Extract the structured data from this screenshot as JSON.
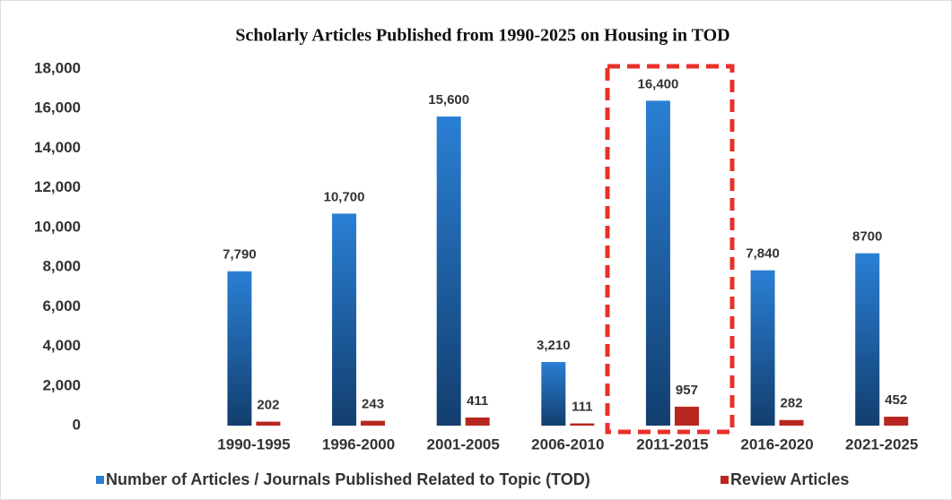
{
  "chart_data": {
    "type": "bar",
    "title": "Scholarly Articles Published from 1990-2025 on Housing in TOD",
    "categories": [
      null,
      "1990-1995",
      "1996-2000",
      "2001-2005",
      "2006-2010",
      "2011-2015",
      "2016-2020",
      "2021-2025"
    ],
    "series": [
      {
        "name": "Number of Articles / Journals Published Related to Topic (TOD)",
        "color": "#2a7fd4",
        "values": [
          null,
          7790,
          10700,
          15600,
          3210,
          16400,
          7840,
          8700
        ],
        "value_labels": [
          null,
          "7,790",
          "10,700",
          "15,600",
          "3,210",
          "16,400",
          "7,840",
          "8700"
        ]
      },
      {
        "name": "Review  Articles",
        "color": "#b8271f",
        "values": [
          null,
          202,
          243,
          411,
          111,
          957,
          282,
          452
        ]
      }
    ],
    "ylim": [
      0,
      18000
    ],
    "yticks": [
      0,
      {
        "value": 2000,
        "label": "2,000"
      },
      {
        "value": 4000,
        "label": "4,000"
      },
      {
        "value": 6000,
        "label": "6,000"
      },
      {
        "value": 8000,
        "label": "8,000"
      },
      {
        "value": 10000,
        "label": "10,000"
      },
      {
        "value": 12000,
        "label": "12,000"
      },
      {
        "value": 14000,
        "label": "14,000"
      },
      {
        "value": 16000,
        "label": "16,000"
      },
      {
        "value": 18000,
        "label": "18,000"
      }
    ],
    "grid": false,
    "legend": "bottom"
  }
}
